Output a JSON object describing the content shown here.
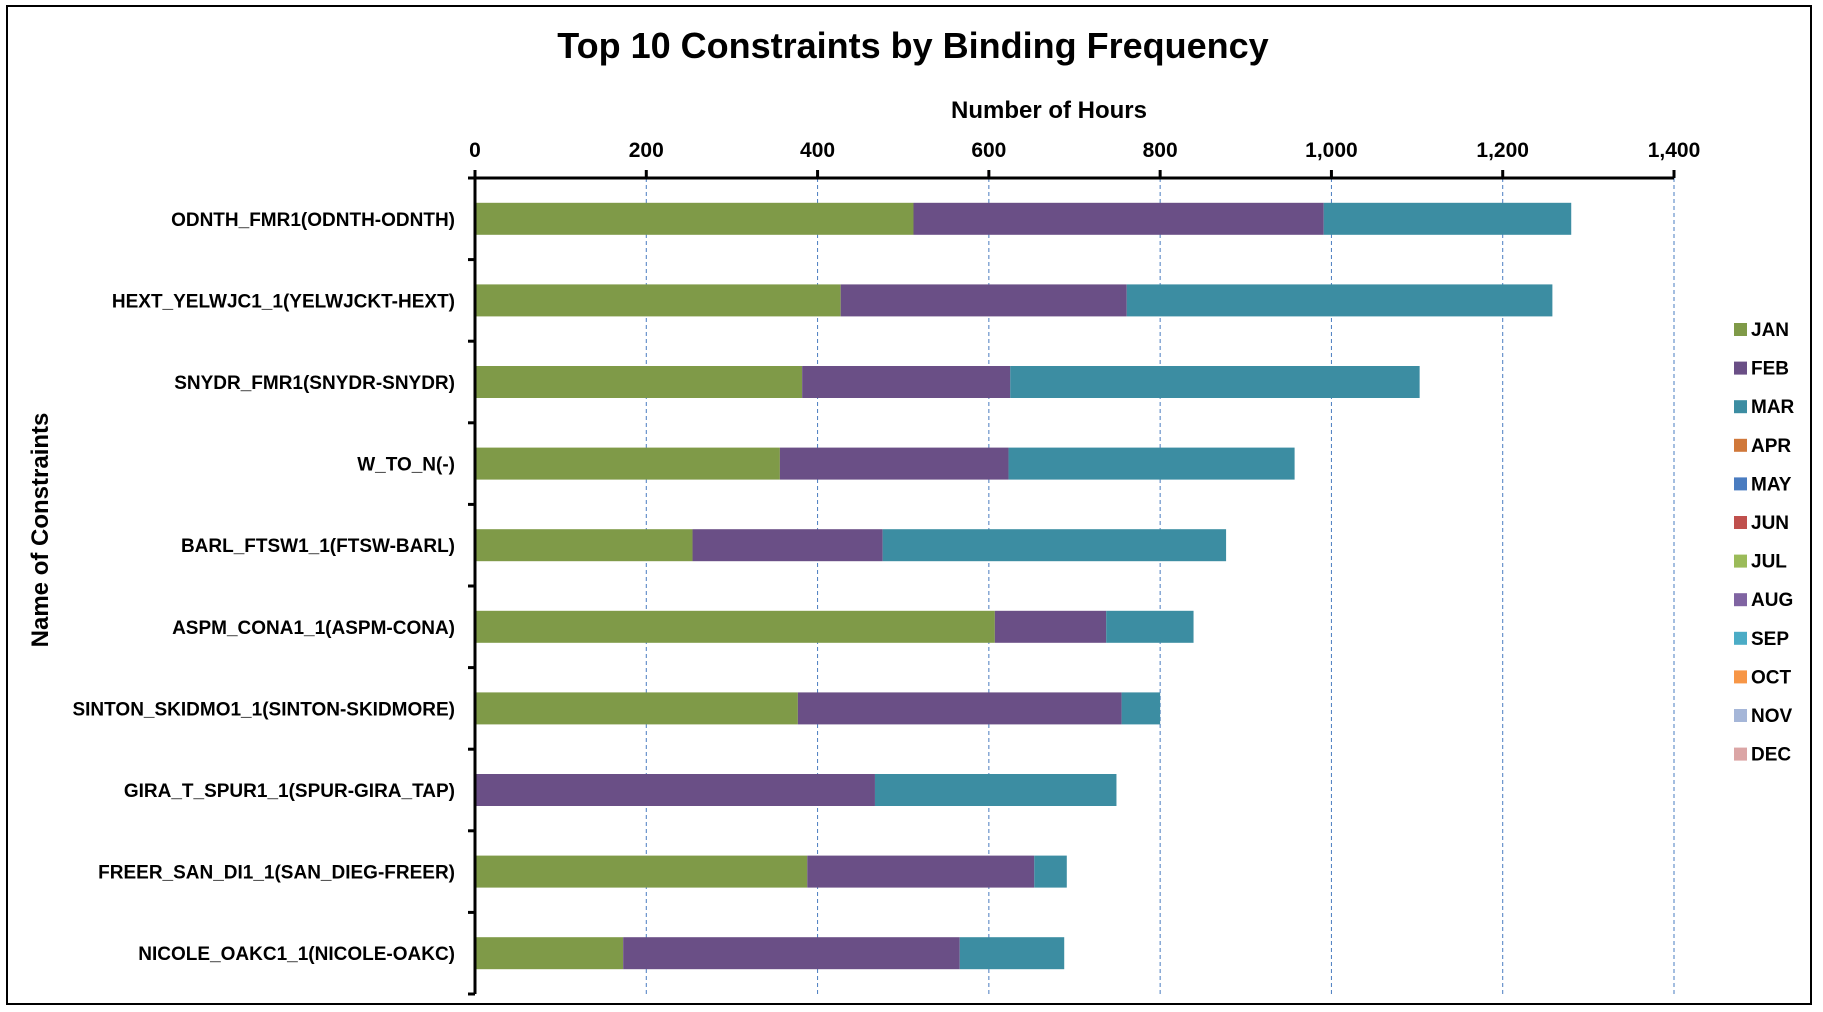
{
  "chart_data": {
    "type": "bar",
    "orientation": "horizontal",
    "stacked": true,
    "title": "Top 10 Constraints by Binding Frequency",
    "xlabel": "Number of Hours",
    "ylabel": "Name of Constraints",
    "xlim": [
      0,
      1400
    ],
    "x_ticks": [
      0,
      200,
      400,
      600,
      800,
      1000,
      1200,
      1400
    ],
    "x_tick_labels": [
      "0",
      "200",
      "400",
      "600",
      "800",
      "1,000",
      "1,200",
      "1,400"
    ],
    "x_axis_position": "top",
    "grid": "vertical dashed",
    "legend_position": "right",
    "categories": [
      "ODNTH_FMR1(ODNTH-ODNTH)",
      "HEXT_YELWJC1_1(YELWJCKT-HEXT)",
      "SNYDR_FMR1(SNYDR-SNYDR)",
      "W_TO_N(-)",
      "BARL_FTSW1_1(FTSW-BARL)",
      "ASPM_CONA1_1(ASPM-CONA)",
      "SINTON_SKIDMO1_1(SINTON-SKIDMORE)",
      "GIRA_T_SPUR1_1(SPUR-GIRA_TAP)",
      "FREER_SAN_DI1_1(SAN_DIEG-FREER)",
      "NICOLE_OAKC1_1(NICOLE-OAKC)"
    ],
    "series": [
      {
        "name": "JAN",
        "color": "#7f9a48",
        "values": [
          512,
          427,
          382,
          356,
          254,
          607,
          377,
          0,
          388,
          173
        ]
      },
      {
        "name": "FEB",
        "color": "#6a4f86",
        "values": [
          479,
          334,
          243,
          267,
          222,
          130,
          378,
          467,
          265,
          393
        ]
      },
      {
        "name": "MAR",
        "color": "#3c8da2",
        "values": [
          289,
          497,
          478,
          334,
          401,
          102,
          45,
          282,
          38,
          122
        ]
      },
      {
        "name": "APR",
        "color": "#d0783a",
        "values": [
          0,
          0,
          0,
          0,
          0,
          0,
          0,
          0,
          0,
          0
        ]
      },
      {
        "name": "MAY",
        "color": "#4a7cc0",
        "values": [
          0,
          0,
          0,
          0,
          0,
          0,
          0,
          0,
          0,
          0
        ]
      },
      {
        "name": "JUN",
        "color": "#c0504d",
        "values": [
          0,
          0,
          0,
          0,
          0,
          0,
          0,
          0,
          0,
          0
        ]
      },
      {
        "name": "JUL",
        "color": "#9bbb59",
        "values": [
          0,
          0,
          0,
          0,
          0,
          0,
          0,
          0,
          0,
          0
        ]
      },
      {
        "name": "AUG",
        "color": "#8064a2",
        "values": [
          0,
          0,
          0,
          0,
          0,
          0,
          0,
          0,
          0,
          0
        ]
      },
      {
        "name": "SEP",
        "color": "#4bacc6",
        "values": [
          0,
          0,
          0,
          0,
          0,
          0,
          0,
          0,
          0,
          0
        ]
      },
      {
        "name": "OCT",
        "color": "#f79646",
        "values": [
          0,
          0,
          0,
          0,
          0,
          0,
          0,
          0,
          0,
          0
        ]
      },
      {
        "name": "NOV",
        "color": "#a5b6d8",
        "values": [
          0,
          0,
          0,
          0,
          0,
          0,
          0,
          0,
          0,
          0
        ]
      },
      {
        "name": "DEC",
        "color": "#dba5a5",
        "values": [
          0,
          0,
          0,
          0,
          0,
          0,
          0,
          0,
          0,
          0
        ]
      }
    ],
    "colors": {
      "axis": "#000000",
      "grid": "#4a7cc0"
    }
  }
}
